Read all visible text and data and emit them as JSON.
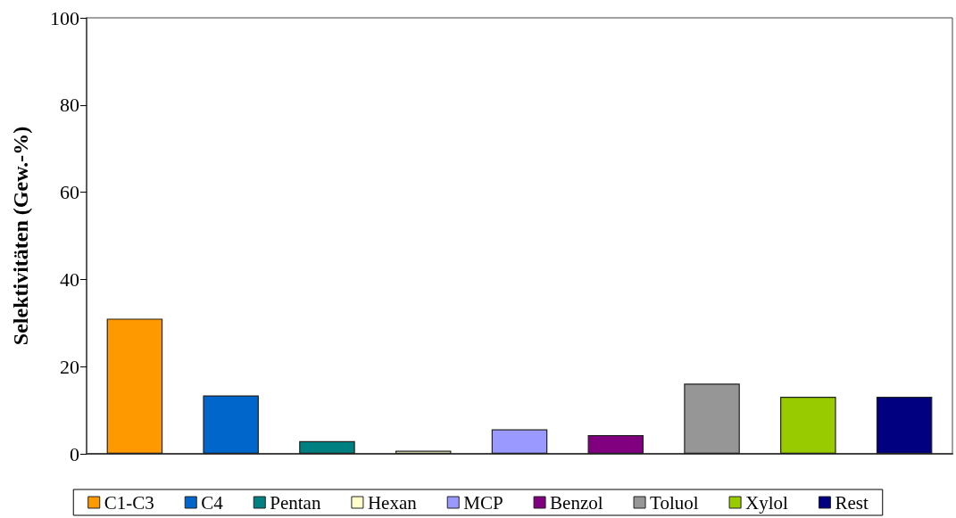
{
  "chart_data": {
    "type": "bar",
    "ylabel": "Selektivitäten (Gew.-%)",
    "categories": [
      null,
      null,
      null,
      null,
      null,
      null,
      null,
      null,
      null
    ],
    "series": [
      {
        "name": "C1-C3",
        "color": "#ff9900",
        "values": [
          31.0,
          null,
          null,
          null,
          null,
          null,
          null,
          null,
          null
        ]
      },
      {
        "name": "C4",
        "color": "#0066cc",
        "values": [
          null,
          13.4,
          null,
          null,
          null,
          null,
          null,
          null,
          null
        ]
      },
      {
        "name": "Pentan",
        "color": "#008080",
        "values": [
          null,
          null,
          2.9,
          null,
          null,
          null,
          null,
          null,
          null
        ]
      },
      {
        "name": "Hexan",
        "color": "#ffffcc",
        "values": [
          null,
          null,
          null,
          0.7,
          null,
          null,
          null,
          null,
          null
        ]
      },
      {
        "name": "MCP",
        "color": "#9999ff",
        "values": [
          null,
          null,
          null,
          null,
          5.6,
          null,
          null,
          null,
          null
        ]
      },
      {
        "name": "Benzol",
        "color": "#800080",
        "values": [
          null,
          null,
          null,
          null,
          null,
          4.3,
          null,
          null,
          null
        ]
      },
      {
        "name": "Toluol",
        "color": "#969696",
        "values": [
          null,
          null,
          null,
          null,
          null,
          null,
          16.1,
          null,
          null
        ]
      },
      {
        "name": "Xylol",
        "color": "#99cc00",
        "values": [
          null,
          null,
          null,
          null,
          null,
          null,
          null,
          13.1,
          null
        ]
      },
      {
        "name": "Rest",
        "color": "#000080",
        "values": [
          null,
          null,
          null,
          null,
          null,
          null,
          null,
          null,
          13.1
        ]
      }
    ],
    "ylim": [
      0,
      100
    ],
    "yticks": [
      0,
      20,
      40,
      60,
      80,
      100
    ],
    "grid": false,
    "legend": "bottom"
  }
}
